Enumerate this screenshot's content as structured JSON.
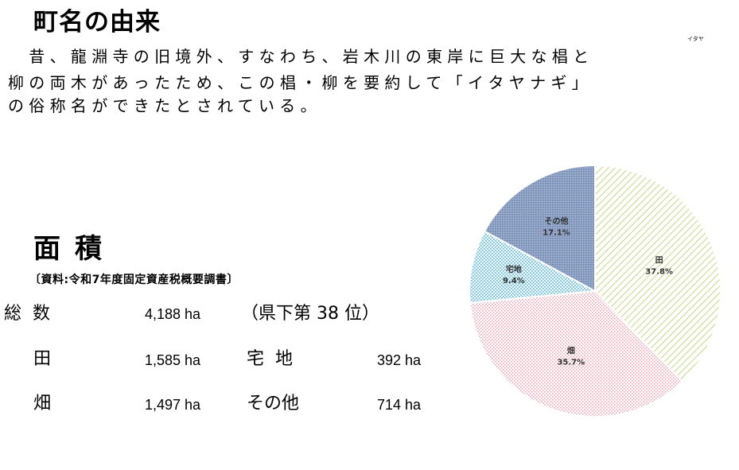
{
  "origin": {
    "title": "町名の由来",
    "ruby": "イタヤ",
    "lines": [
      "　昔、龍淵寺の旧境外、すなわち、岩木川の東岸に巨大な椙と",
      "柳の両木があったため、この椙・柳を要約して「イタヤナギ」",
      "の俗称名ができたとされている。"
    ]
  },
  "area": {
    "title": "面積",
    "source": "〔資料:令和7年度固定資産税概要調書〕",
    "total_label": "総数",
    "total_value": "4,188 ha",
    "rank": "（県下第 38 位）",
    "rows": [
      {
        "label": "田",
        "value": "1,585 ha",
        "label2": "宅地",
        "value2": "392 ha"
      },
      {
        "label": "畑",
        "value": "1,497 ha",
        "label2": "その他",
        "value2": "714 ha"
      }
    ]
  },
  "chart_data": {
    "type": "pie",
    "slices": [
      {
        "label": "田",
        "percent_label": "37.8%",
        "value": 37.8,
        "color": "#c9d98f",
        "pattern": "diagonal"
      },
      {
        "label": "畑",
        "percent_label": "35.7%",
        "value": 35.7,
        "color": "#e8a6b6",
        "pattern": "dots"
      },
      {
        "label": "宅地",
        "percent_label": "9.4%",
        "value": 9.4,
        "color": "#7fc3d4",
        "pattern": "dots"
      },
      {
        "label": "その他",
        "percent_label": "17.1%",
        "value": 17.1,
        "color": "#7d92b8",
        "pattern": "dots"
      }
    ],
    "start": "top, clockwise"
  }
}
